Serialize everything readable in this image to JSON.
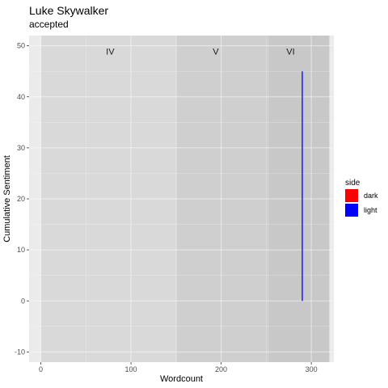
{
  "chart_data": {
    "type": "line",
    "title": "Luke Skywalker",
    "subtitle": "accepted",
    "xlabel": "Wordcount",
    "ylabel": "Cumulative Sentiment",
    "xlim": [
      -13,
      325
    ],
    "ylim": [
      -12,
      52
    ],
    "x_ticks": [
      0,
      100,
      200,
      300
    ],
    "y_ticks": [
      -10,
      0,
      10,
      20,
      30,
      40,
      50
    ],
    "grid": true,
    "legend_position": "right",
    "eras": [
      {
        "label": "IV",
        "x_start": 0,
        "x_end": 151,
        "color": "#d9d9d9"
      },
      {
        "label": "V",
        "x_start": 151,
        "x_end": 253,
        "color": "#cfcfcf"
      },
      {
        "label": "VI",
        "x_start": 253,
        "x_end": 320,
        "color": "#c8c8c8"
      }
    ],
    "series": [
      {
        "name": "light",
        "color": "#0000ff",
        "points": [
          {
            "x": 290,
            "y": 0
          },
          {
            "x": 290,
            "y": 45
          }
        ]
      }
    ],
    "legend": {
      "title": "side",
      "entries": [
        {
          "label": "dark",
          "color": "#ff0000"
        },
        {
          "label": "light",
          "color": "#0000ff"
        }
      ]
    }
  }
}
